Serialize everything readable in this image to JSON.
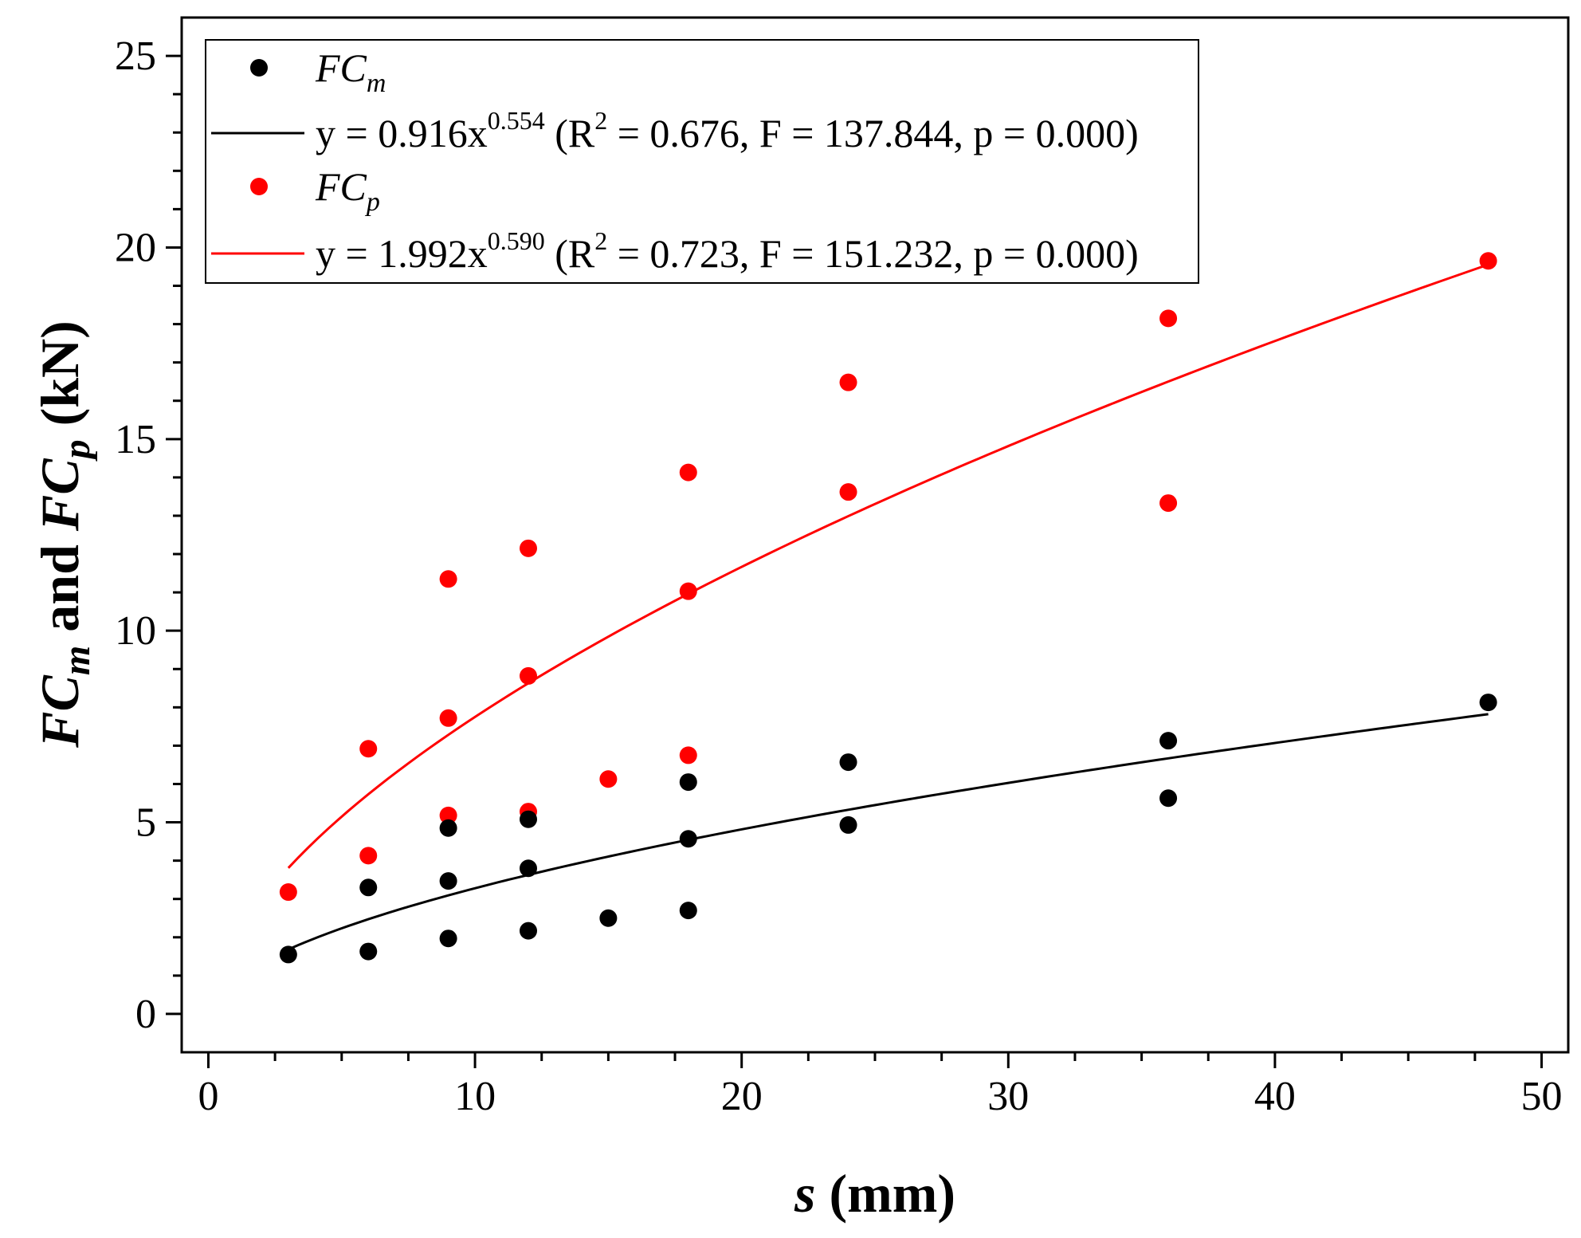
{
  "chart_data": {
    "type": "scatter",
    "xlabel": {
      "var": "s",
      "unit": " (mm)"
    },
    "ylabel": {
      "part1": "FC",
      "sub1": "m",
      "mid": " and ",
      "part2": "FC",
      "sub2": "p",
      "unit": " (kN)"
    },
    "xlim": [
      -1,
      51
    ],
    "ylim": [
      -1,
      26
    ],
    "xticks": [
      0,
      10,
      20,
      30,
      40,
      50
    ],
    "yticks": [
      0,
      5,
      10,
      15,
      20,
      25
    ],
    "xtick_labels": [
      "0",
      "10",
      "20",
      "30",
      "40",
      "50"
    ],
    "ytick_labels": [
      "0",
      "5",
      "10",
      "15",
      "20",
      "25"
    ],
    "legend_position": "top-left",
    "series": [
      {
        "name": "FCm",
        "name_main": "FC",
        "name_sub": "m",
        "color": "#000000",
        "points": [
          [
            3,
            1.55
          ],
          [
            6,
            1.63
          ],
          [
            6,
            3.3
          ],
          [
            9,
            1.97
          ],
          [
            9,
            3.47
          ],
          [
            9,
            4.85
          ],
          [
            12,
            2.17
          ],
          [
            12,
            3.8
          ],
          [
            12,
            5.08
          ],
          [
            15,
            2.5
          ],
          [
            18,
            2.7
          ],
          [
            18,
            4.57
          ],
          [
            18,
            6.05
          ],
          [
            24,
            4.93
          ],
          [
            24,
            6.57
          ],
          [
            36,
            5.63
          ],
          [
            36,
            7.13
          ],
          [
            48,
            8.13
          ]
        ],
        "fit": {
          "a": 0.916,
          "b": 0.554,
          "x_range": [
            3,
            48
          ],
          "eq_prefix": "y = 0.916x",
          "eq_exp": "0.554",
          "stats_open": " (R",
          "r2_sup": "2",
          "stats_rest": " = 0.676, F = 137.844, p = 0.000)"
        }
      },
      {
        "name": "FCp",
        "name_main": "FC",
        "name_sub": "p",
        "color": "#ff0000",
        "points": [
          [
            3,
            3.18
          ],
          [
            6,
            4.13
          ],
          [
            6,
            6.92
          ],
          [
            9,
            5.18
          ],
          [
            9,
            7.72
          ],
          [
            9,
            11.35
          ],
          [
            12,
            5.28
          ],
          [
            12,
            8.82
          ],
          [
            12,
            12.15
          ],
          [
            15,
            6.13
          ],
          [
            18,
            6.75
          ],
          [
            18,
            11.03
          ],
          [
            18,
            14.13
          ],
          [
            24,
            13.62
          ],
          [
            24,
            16.48
          ],
          [
            36,
            13.33
          ],
          [
            36,
            18.15
          ],
          [
            48,
            19.65
          ]
        ],
        "fit": {
          "a": 1.992,
          "b": 0.59,
          "x_range": [
            3,
            48
          ],
          "eq_prefix": "y = 1.992x",
          "eq_exp": "0.590",
          "stats_open": " (R",
          "r2_sup": "2",
          "stats_rest": " = 0.723, F = 151.232, p = 0.000)"
        }
      }
    ]
  }
}
